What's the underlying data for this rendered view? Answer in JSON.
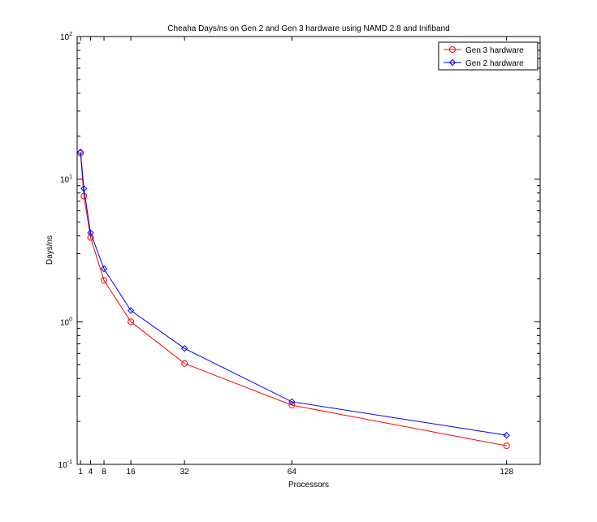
{
  "chart_data": {
    "type": "line",
    "title": "Cheaha Days/ns on Gen 2 and Gen 3 hardware using NAMD 2.8 and Inifiband",
    "xlabel": "Processors",
    "ylabel": "Days/ns",
    "x_ticks": [
      1,
      4,
      8,
      16,
      32,
      64,
      128
    ],
    "x_tick_labels": [
      "1",
      "4",
      "8",
      "16",
      "32",
      "64",
      "128"
    ],
    "xlim": [
      0,
      138
    ],
    "ylim": [
      0.1,
      100
    ],
    "y_scale": "log",
    "y_ticks": [
      {
        "value": 0.1,
        "base": "10",
        "exp": "-1"
      },
      {
        "value": 1,
        "base": "10",
        "exp": "0"
      },
      {
        "value": 10,
        "base": "10",
        "exp": "1"
      },
      {
        "value": 100,
        "base": "10",
        "exp": "2"
      }
    ],
    "grid": false,
    "legend_position": "top-right",
    "series": [
      {
        "name": "Gen 3 hardware",
        "color": "#ff0000",
        "marker": "circle",
        "x": [
          1,
          2,
          4,
          8,
          16,
          32,
          64,
          128
        ],
        "y": [
          15.2,
          7.6,
          3.9,
          1.95,
          1.0,
          0.51,
          0.26,
          0.135
        ]
      },
      {
        "name": "Gen 2 hardware",
        "color": "#0000ff",
        "marker": "diamond",
        "x": [
          1,
          2,
          4,
          8,
          16,
          32,
          64,
          128
        ],
        "y": [
          15.5,
          8.6,
          4.2,
          2.35,
          1.2,
          0.65,
          0.275,
          0.16
        ]
      }
    ]
  }
}
